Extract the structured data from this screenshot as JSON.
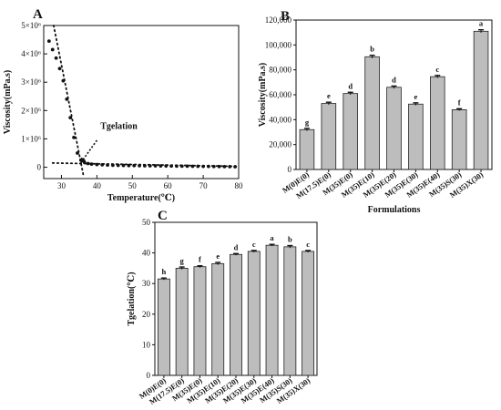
{
  "chart_data": [
    {
      "panel": "A",
      "type": "scatter",
      "xlabel": "Temperature(℃)",
      "ylabel": "Viscosity(mPa.s)",
      "xlim": [
        25,
        80
      ],
      "ylim": [
        -400000,
        5000000
      ],
      "xticks": [
        30,
        40,
        50,
        60,
        70,
        80
      ],
      "yticks": [
        0,
        1000000,
        2000000,
        3000000,
        4000000,
        5000000
      ],
      "ytick_labels": [
        "0",
        "1×10⁶",
        "2×10⁶",
        "3×10⁶",
        "4×10⁶",
        "5×10⁶"
      ],
      "points": [
        [
          26.5,
          4450000
        ],
        [
          27.5,
          4150000
        ],
        [
          28.5,
          3850000
        ],
        [
          29.5,
          3480000
        ],
        [
          30.5,
          3050000
        ],
        [
          31.5,
          2400000
        ],
        [
          32.5,
          1750000
        ],
        [
          33.5,
          1050000
        ],
        [
          34.5,
          500000
        ],
        [
          35.5,
          250000
        ],
        [
          36.5,
          170000
        ],
        [
          37.5,
          130000
        ],
        [
          38.5,
          110000
        ],
        [
          40,
          95000
        ],
        [
          41.5,
          85000
        ],
        [
          43,
          78000
        ],
        [
          44.5,
          72000
        ],
        [
          46,
          68000
        ],
        [
          47.5,
          64000
        ],
        [
          49,
          60000
        ],
        [
          50.5,
          57000
        ],
        [
          52,
          54000
        ],
        [
          53.5,
          52000
        ],
        [
          55,
          50000
        ],
        [
          56.5,
          48000
        ],
        [
          58,
          46000
        ],
        [
          59.5,
          44000
        ],
        [
          61,
          42000
        ],
        [
          62.5,
          40000
        ],
        [
          64,
          38000
        ],
        [
          65.5,
          36000
        ],
        [
          67,
          34000
        ],
        [
          68.5,
          32000
        ],
        [
          70,
          30000
        ],
        [
          71.5,
          28000
        ],
        [
          73,
          26000
        ],
        [
          74.5,
          24000
        ],
        [
          76,
          22000
        ],
        [
          77.5,
          20000
        ],
        [
          79,
          18000
        ]
      ],
      "tangent_lines": [
        {
          "from": [
            27.8,
            5000000
          ],
          "to": [
            36.3,
            -350000
          ]
        },
        {
          "from": [
            27.5,
            150000
          ],
          "to": [
            80,
            30000
          ]
        }
      ],
      "annotation": {
        "text": "Tgelation",
        "arrow_tail": [
          40,
          950000
        ],
        "arrow_head": [
          35.3,
          130000
        ],
        "text_at": [
          41,
          1350000
        ]
      }
    },
    {
      "panel": "B",
      "type": "bar",
      "xlabel": "Formulations",
      "ylabel": "Viscosity(mPa.s)",
      "ylim": [
        0,
        120000
      ],
      "yticks": [
        0,
        20000,
        40000,
        60000,
        80000,
        100000,
        120000
      ],
      "ytick_labels": [
        "0",
        "20,000",
        "40,000",
        "60,000",
        "80,000",
        "100,000",
        "120,000"
      ],
      "categories": [
        "M(0)E(0)",
        "M(17.5)E(0)",
        "M(35)E(0)",
        "M(35)E(10)",
        "M(35)E(20)",
        "M(35)E(30)",
        "M(35)E(40)",
        "M(35)S(30)",
        "M(35)X(30)"
      ],
      "values": [
        32000,
        53000,
        61000,
        90500,
        66000,
        52500,
        74500,
        48000,
        111000
      ],
      "errors": [
        1000,
        1000,
        1000,
        1200,
        1000,
        1000,
        1000,
        800,
        1200
      ],
      "significance": [
        "g",
        "e",
        "d",
        "b",
        "d",
        "e",
        "c",
        "f",
        "a"
      ]
    },
    {
      "panel": "C",
      "type": "bar",
      "xlabel": "Formulations",
      "ylabel": "Tgelation(℃)",
      "ylim": [
        0,
        50
      ],
      "yticks": [
        0,
        10,
        20,
        30,
        40,
        50
      ],
      "ytick_labels": [
        "0",
        "10",
        "20",
        "30",
        "40",
        "50"
      ],
      "categories": [
        "M(0)E(0)",
        "M(17.5)E(0)",
        "M(35)E(0)",
        "M(35)E(10)",
        "M(35)E(20)",
        "M(35)E(30)",
        "M(35)E(40)",
        "M(35)S(30)",
        "M(35)X(30)"
      ],
      "values": [
        31.5,
        35,
        35.5,
        36.5,
        39.5,
        40.5,
        42.5,
        42,
        40.5
      ],
      "errors": [
        0.3,
        0.4,
        0.3,
        0.4,
        0.3,
        0.3,
        0.3,
        0.4,
        0.3
      ],
      "significance": [
        "h",
        "g",
        "f",
        "e",
        "d",
        "c",
        "a",
        "b",
        "c"
      ]
    }
  ]
}
